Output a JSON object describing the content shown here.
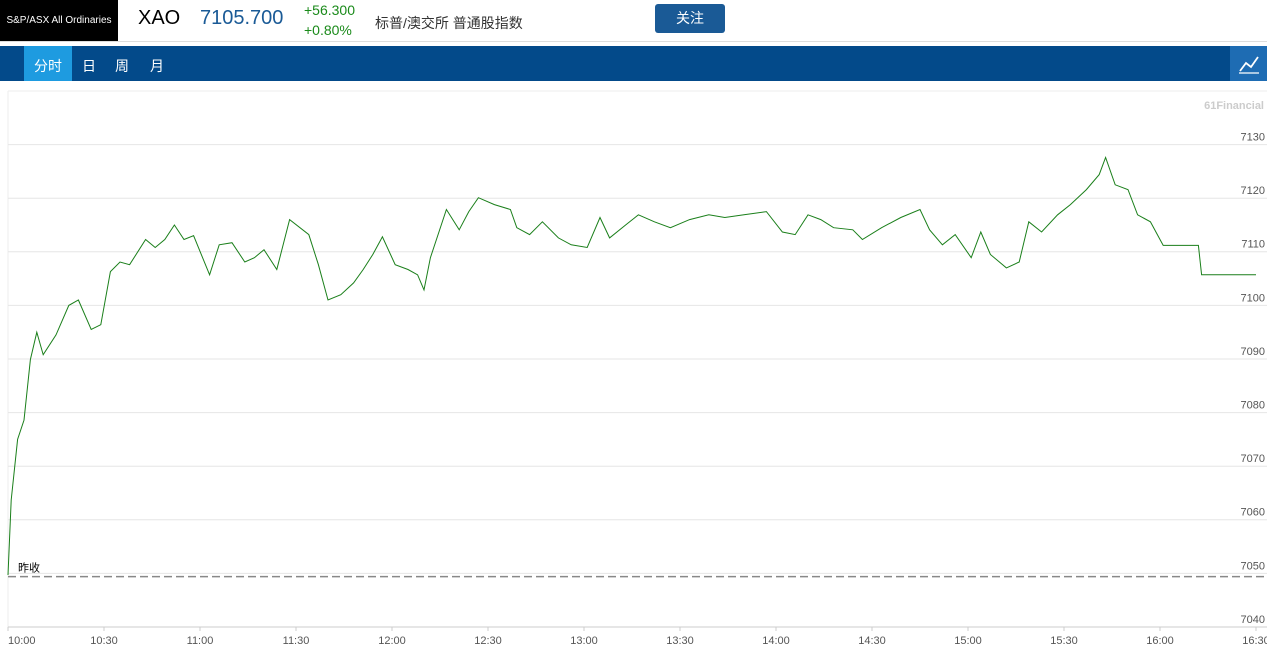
{
  "header": {
    "logo": "S&P/ASX All Ordinaries",
    "symbol": "XAO",
    "price": "7105.700",
    "change": "+56.300",
    "change_pct": "+0.80%",
    "name": "标普/澳交所 普通股指数",
    "follow_button": "关注"
  },
  "tabs": [
    "分时",
    "日",
    "周",
    "月"
  ],
  "chart_data": {
    "type": "line",
    "watermark": "61Financial",
    "x": [
      "10:00",
      "10:01",
      "10:03",
      "10:05",
      "10:07",
      "10:09",
      "10:11",
      "10:15",
      "10:19",
      "10:22",
      "10:26",
      "10:29",
      "10:32",
      "10:35",
      "10:38",
      "10:43",
      "10:46",
      "10:49",
      "10:52",
      "10:55",
      "10:58",
      "11:03",
      "11:06",
      "11:10",
      "11:14",
      "11:17",
      "11:20",
      "11:24",
      "11:28",
      "11:34",
      "11:37",
      "11:40",
      "11:44",
      "11:48",
      "11:51",
      "11:54",
      "11:57",
      "12:01",
      "12:05",
      "12:08",
      "12:10",
      "12:12",
      "12:17",
      "12:21",
      "12:24",
      "12:27",
      "12:32",
      "12:37",
      "12:39",
      "12:43",
      "12:47",
      "12:52",
      "12:56",
      "13:01",
      "13:05",
      "13:08",
      "13:13",
      "13:17",
      "13:22",
      "13:27",
      "13:33",
      "13:39",
      "13:44",
      "13:50",
      "13:57",
      "14:02",
      "14:06",
      "14:10",
      "14:14",
      "14:18",
      "14:24",
      "14:27",
      "14:33",
      "14:39",
      "14:45",
      "14:48",
      "14:52",
      "14:56",
      "15:01",
      "15:04",
      "15:07",
      "15:12",
      "15:16",
      "15:19",
      "15:23",
      "15:28",
      "15:32",
      "15:37",
      "15:41",
      "15:43",
      "15:46",
      "15:50",
      "15:53",
      "15:57",
      "16:00",
      "16:01",
      "16:12",
      "16:13",
      "16:30"
    ],
    "series": [
      {
        "color": "#1a7f1a",
        "values": [
          7049.7,
          7063.7,
          7075,
          7078.6,
          7089.9,
          7095,
          7090.8,
          7094.5,
          7100,
          7101,
          7095.5,
          7096.4,
          7106.3,
          7108.1,
          7107.6,
          7112.3,
          7110.8,
          7112.3,
          7115,
          7112.3,
          7113,
          7105.7,
          7111.3,
          7111.7,
          7108.1,
          7108.9,
          7110.4,
          7106.7,
          7116,
          7113.2,
          7107.6,
          7101,
          7102,
          7104.2,
          7106.7,
          7109.5,
          7112.8,
          7107.6,
          7106.7,
          7105.7,
          7102.9,
          7108.9,
          7117.9,
          7114.1,
          7117.5,
          7120.1,
          7118.8,
          7117.9,
          7114.5,
          7113.2,
          7115.6,
          7112.6,
          7111.3,
          7110.8,
          7116.4,
          7112.6,
          7115,
          7116.9,
          7115.6,
          7114.5,
          7116,
          7116.9,
          7116.4,
          7116.9,
          7117.5,
          7113.7,
          7113.2,
          7116.9,
          7116,
          7114.5,
          7114.1,
          7112.3,
          7114.5,
          7116.4,
          7117.9,
          7114.1,
          7111.3,
          7113.2,
          7108.9,
          7113.7,
          7109.5,
          7107,
          7108.1,
          7115.6,
          7113.7,
          7116.9,
          7118.8,
          7121.6,
          7124.4,
          7127.6,
          7122.5,
          7121.6,
          7116.9,
          7115.6,
          7112.3,
          7111.2,
          7111.2,
          7105.7,
          7105.7
        ]
      }
    ],
    "xlim": [
      "10:00",
      "16:30"
    ],
    "xticks": [
      "10:00",
      "10:30",
      "11:00",
      "11:30",
      "12:00",
      "12:30",
      "13:00",
      "13:30",
      "14:00",
      "14:30",
      "15:00",
      "15:30",
      "16:00",
      "16:30"
    ],
    "ylim": [
      7040,
      7140
    ],
    "yticks": [
      7040,
      7050,
      7060,
      7070,
      7080,
      7090,
      7100,
      7110,
      7120,
      7130
    ],
    "reference": {
      "label": "昨收",
      "value": 7049.4
    },
    "grid": true
  }
}
